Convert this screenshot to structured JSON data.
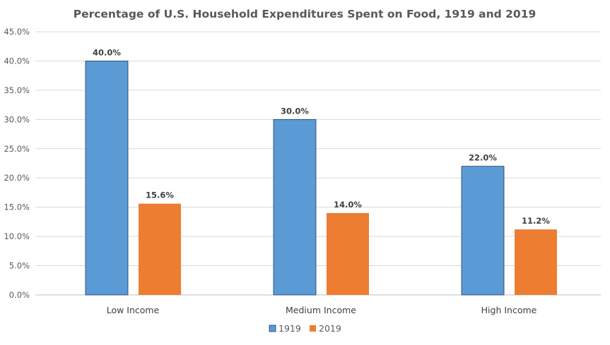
{
  "chart_data": {
    "type": "bar",
    "title": "Percentage of U.S. Household Expenditures Spent on Food, 1919 and 2019",
    "categories": [
      "Low Income",
      "Medium Income",
      "High Income"
    ],
    "series": [
      {
        "name": "1919",
        "values": [
          40.0,
          30.0,
          22.0
        ],
        "color": "#5B9BD5",
        "labels": [
          "40.0%",
          "30.0%",
          "22.0%"
        ]
      },
      {
        "name": "2019",
        "values": [
          15.6,
          14.0,
          11.2
        ],
        "color": "#ED7D31",
        "labels": [
          "15.6%",
          "14.0%",
          "11.2%"
        ]
      }
    ],
    "ylim": [
      0,
      45
    ],
    "yticks": [
      "0.0%",
      "5.0%",
      "10.0%",
      "15.0%",
      "20.0%",
      "25.0%",
      "30.0%",
      "35.0%",
      "40.0%",
      "45.0%"
    ],
    "xlabel": "",
    "ylabel": "",
    "grid": true,
    "legend_position": "bottom"
  }
}
